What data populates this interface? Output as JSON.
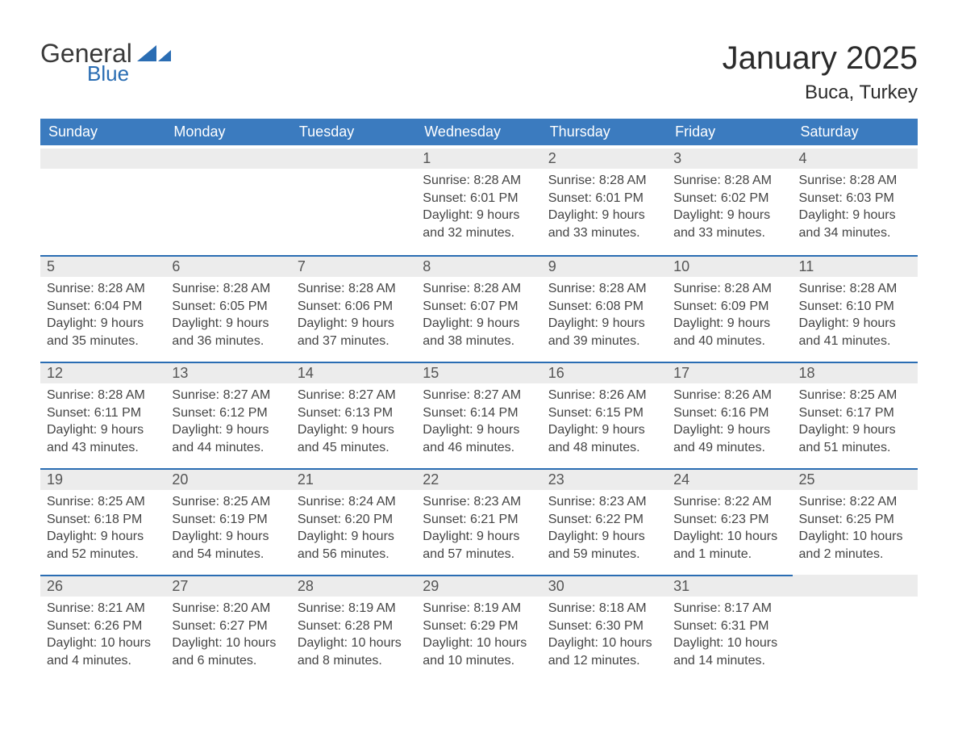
{
  "brand": {
    "word1": "General",
    "word2": "Blue"
  },
  "title": "January 2025",
  "location": "Buca, Turkey",
  "colors": {
    "header_blue": "#3b7bbf",
    "accent_blue": "#2a6db3",
    "row_alt": "#ececec",
    "text_dark": "#303030",
    "text_mid": "#444444",
    "white": "#ffffff"
  },
  "week_header": [
    "Sunday",
    "Monday",
    "Tuesday",
    "Wednesday",
    "Thursday",
    "Friday",
    "Saturday"
  ],
  "weeks": [
    [
      null,
      null,
      null,
      {
        "n": "1",
        "sunrise": "Sunrise: 8:28 AM",
        "sunset": "Sunset: 6:01 PM",
        "daylight": "Daylight: 9 hours and 32 minutes."
      },
      {
        "n": "2",
        "sunrise": "Sunrise: 8:28 AM",
        "sunset": "Sunset: 6:01 PM",
        "daylight": "Daylight: 9 hours and 33 minutes."
      },
      {
        "n": "3",
        "sunrise": "Sunrise: 8:28 AM",
        "sunset": "Sunset: 6:02 PM",
        "daylight": "Daylight: 9 hours and 33 minutes."
      },
      {
        "n": "4",
        "sunrise": "Sunrise: 8:28 AM",
        "sunset": "Sunset: 6:03 PM",
        "daylight": "Daylight: 9 hours and 34 minutes."
      }
    ],
    [
      {
        "n": "5",
        "sunrise": "Sunrise: 8:28 AM",
        "sunset": "Sunset: 6:04 PM",
        "daylight": "Daylight: 9 hours and 35 minutes."
      },
      {
        "n": "6",
        "sunrise": "Sunrise: 8:28 AM",
        "sunset": "Sunset: 6:05 PM",
        "daylight": "Daylight: 9 hours and 36 minutes."
      },
      {
        "n": "7",
        "sunrise": "Sunrise: 8:28 AM",
        "sunset": "Sunset: 6:06 PM",
        "daylight": "Daylight: 9 hours and 37 minutes."
      },
      {
        "n": "8",
        "sunrise": "Sunrise: 8:28 AM",
        "sunset": "Sunset: 6:07 PM",
        "daylight": "Daylight: 9 hours and 38 minutes."
      },
      {
        "n": "9",
        "sunrise": "Sunrise: 8:28 AM",
        "sunset": "Sunset: 6:08 PM",
        "daylight": "Daylight: 9 hours and 39 minutes."
      },
      {
        "n": "10",
        "sunrise": "Sunrise: 8:28 AM",
        "sunset": "Sunset: 6:09 PM",
        "daylight": "Daylight: 9 hours and 40 minutes."
      },
      {
        "n": "11",
        "sunrise": "Sunrise: 8:28 AM",
        "sunset": "Sunset: 6:10 PM",
        "daylight": "Daylight: 9 hours and 41 minutes."
      }
    ],
    [
      {
        "n": "12",
        "sunrise": "Sunrise: 8:28 AM",
        "sunset": "Sunset: 6:11 PM",
        "daylight": "Daylight: 9 hours and 43 minutes."
      },
      {
        "n": "13",
        "sunrise": "Sunrise: 8:27 AM",
        "sunset": "Sunset: 6:12 PM",
        "daylight": "Daylight: 9 hours and 44 minutes."
      },
      {
        "n": "14",
        "sunrise": "Sunrise: 8:27 AM",
        "sunset": "Sunset: 6:13 PM",
        "daylight": "Daylight: 9 hours and 45 minutes."
      },
      {
        "n": "15",
        "sunrise": "Sunrise: 8:27 AM",
        "sunset": "Sunset: 6:14 PM",
        "daylight": "Daylight: 9 hours and 46 minutes."
      },
      {
        "n": "16",
        "sunrise": "Sunrise: 8:26 AM",
        "sunset": "Sunset: 6:15 PM",
        "daylight": "Daylight: 9 hours and 48 minutes."
      },
      {
        "n": "17",
        "sunrise": "Sunrise: 8:26 AM",
        "sunset": "Sunset: 6:16 PM",
        "daylight": "Daylight: 9 hours and 49 minutes."
      },
      {
        "n": "18",
        "sunrise": "Sunrise: 8:25 AM",
        "sunset": "Sunset: 6:17 PM",
        "daylight": "Daylight: 9 hours and 51 minutes."
      }
    ],
    [
      {
        "n": "19",
        "sunrise": "Sunrise: 8:25 AM",
        "sunset": "Sunset: 6:18 PM",
        "daylight": "Daylight: 9 hours and 52 minutes."
      },
      {
        "n": "20",
        "sunrise": "Sunrise: 8:25 AM",
        "sunset": "Sunset: 6:19 PM",
        "daylight": "Daylight: 9 hours and 54 minutes."
      },
      {
        "n": "21",
        "sunrise": "Sunrise: 8:24 AM",
        "sunset": "Sunset: 6:20 PM",
        "daylight": "Daylight: 9 hours and 56 minutes."
      },
      {
        "n": "22",
        "sunrise": "Sunrise: 8:23 AM",
        "sunset": "Sunset: 6:21 PM",
        "daylight": "Daylight: 9 hours and 57 minutes."
      },
      {
        "n": "23",
        "sunrise": "Sunrise: 8:23 AM",
        "sunset": "Sunset: 6:22 PM",
        "daylight": "Daylight: 9 hours and 59 minutes."
      },
      {
        "n": "24",
        "sunrise": "Sunrise: 8:22 AM",
        "sunset": "Sunset: 6:23 PM",
        "daylight": "Daylight: 10 hours and 1 minute."
      },
      {
        "n": "25",
        "sunrise": "Sunrise: 8:22 AM",
        "sunset": "Sunset: 6:25 PM",
        "daylight": "Daylight: 10 hours and 2 minutes."
      }
    ],
    [
      {
        "n": "26",
        "sunrise": "Sunrise: 8:21 AM",
        "sunset": "Sunset: 6:26 PM",
        "daylight": "Daylight: 10 hours and 4 minutes."
      },
      {
        "n": "27",
        "sunrise": "Sunrise: 8:20 AM",
        "sunset": "Sunset: 6:27 PM",
        "daylight": "Daylight: 10 hours and 6 minutes."
      },
      {
        "n": "28",
        "sunrise": "Sunrise: 8:19 AM",
        "sunset": "Sunset: 6:28 PM",
        "daylight": "Daylight: 10 hours and 8 minutes."
      },
      {
        "n": "29",
        "sunrise": "Sunrise: 8:19 AM",
        "sunset": "Sunset: 6:29 PM",
        "daylight": "Daylight: 10 hours and 10 minutes."
      },
      {
        "n": "30",
        "sunrise": "Sunrise: 8:18 AM",
        "sunset": "Sunset: 6:30 PM",
        "daylight": "Daylight: 10 hours and 12 minutes."
      },
      {
        "n": "31",
        "sunrise": "Sunrise: 8:17 AM",
        "sunset": "Sunset: 6:31 PM",
        "daylight": "Daylight: 10 hours and 14 minutes."
      },
      null
    ]
  ]
}
